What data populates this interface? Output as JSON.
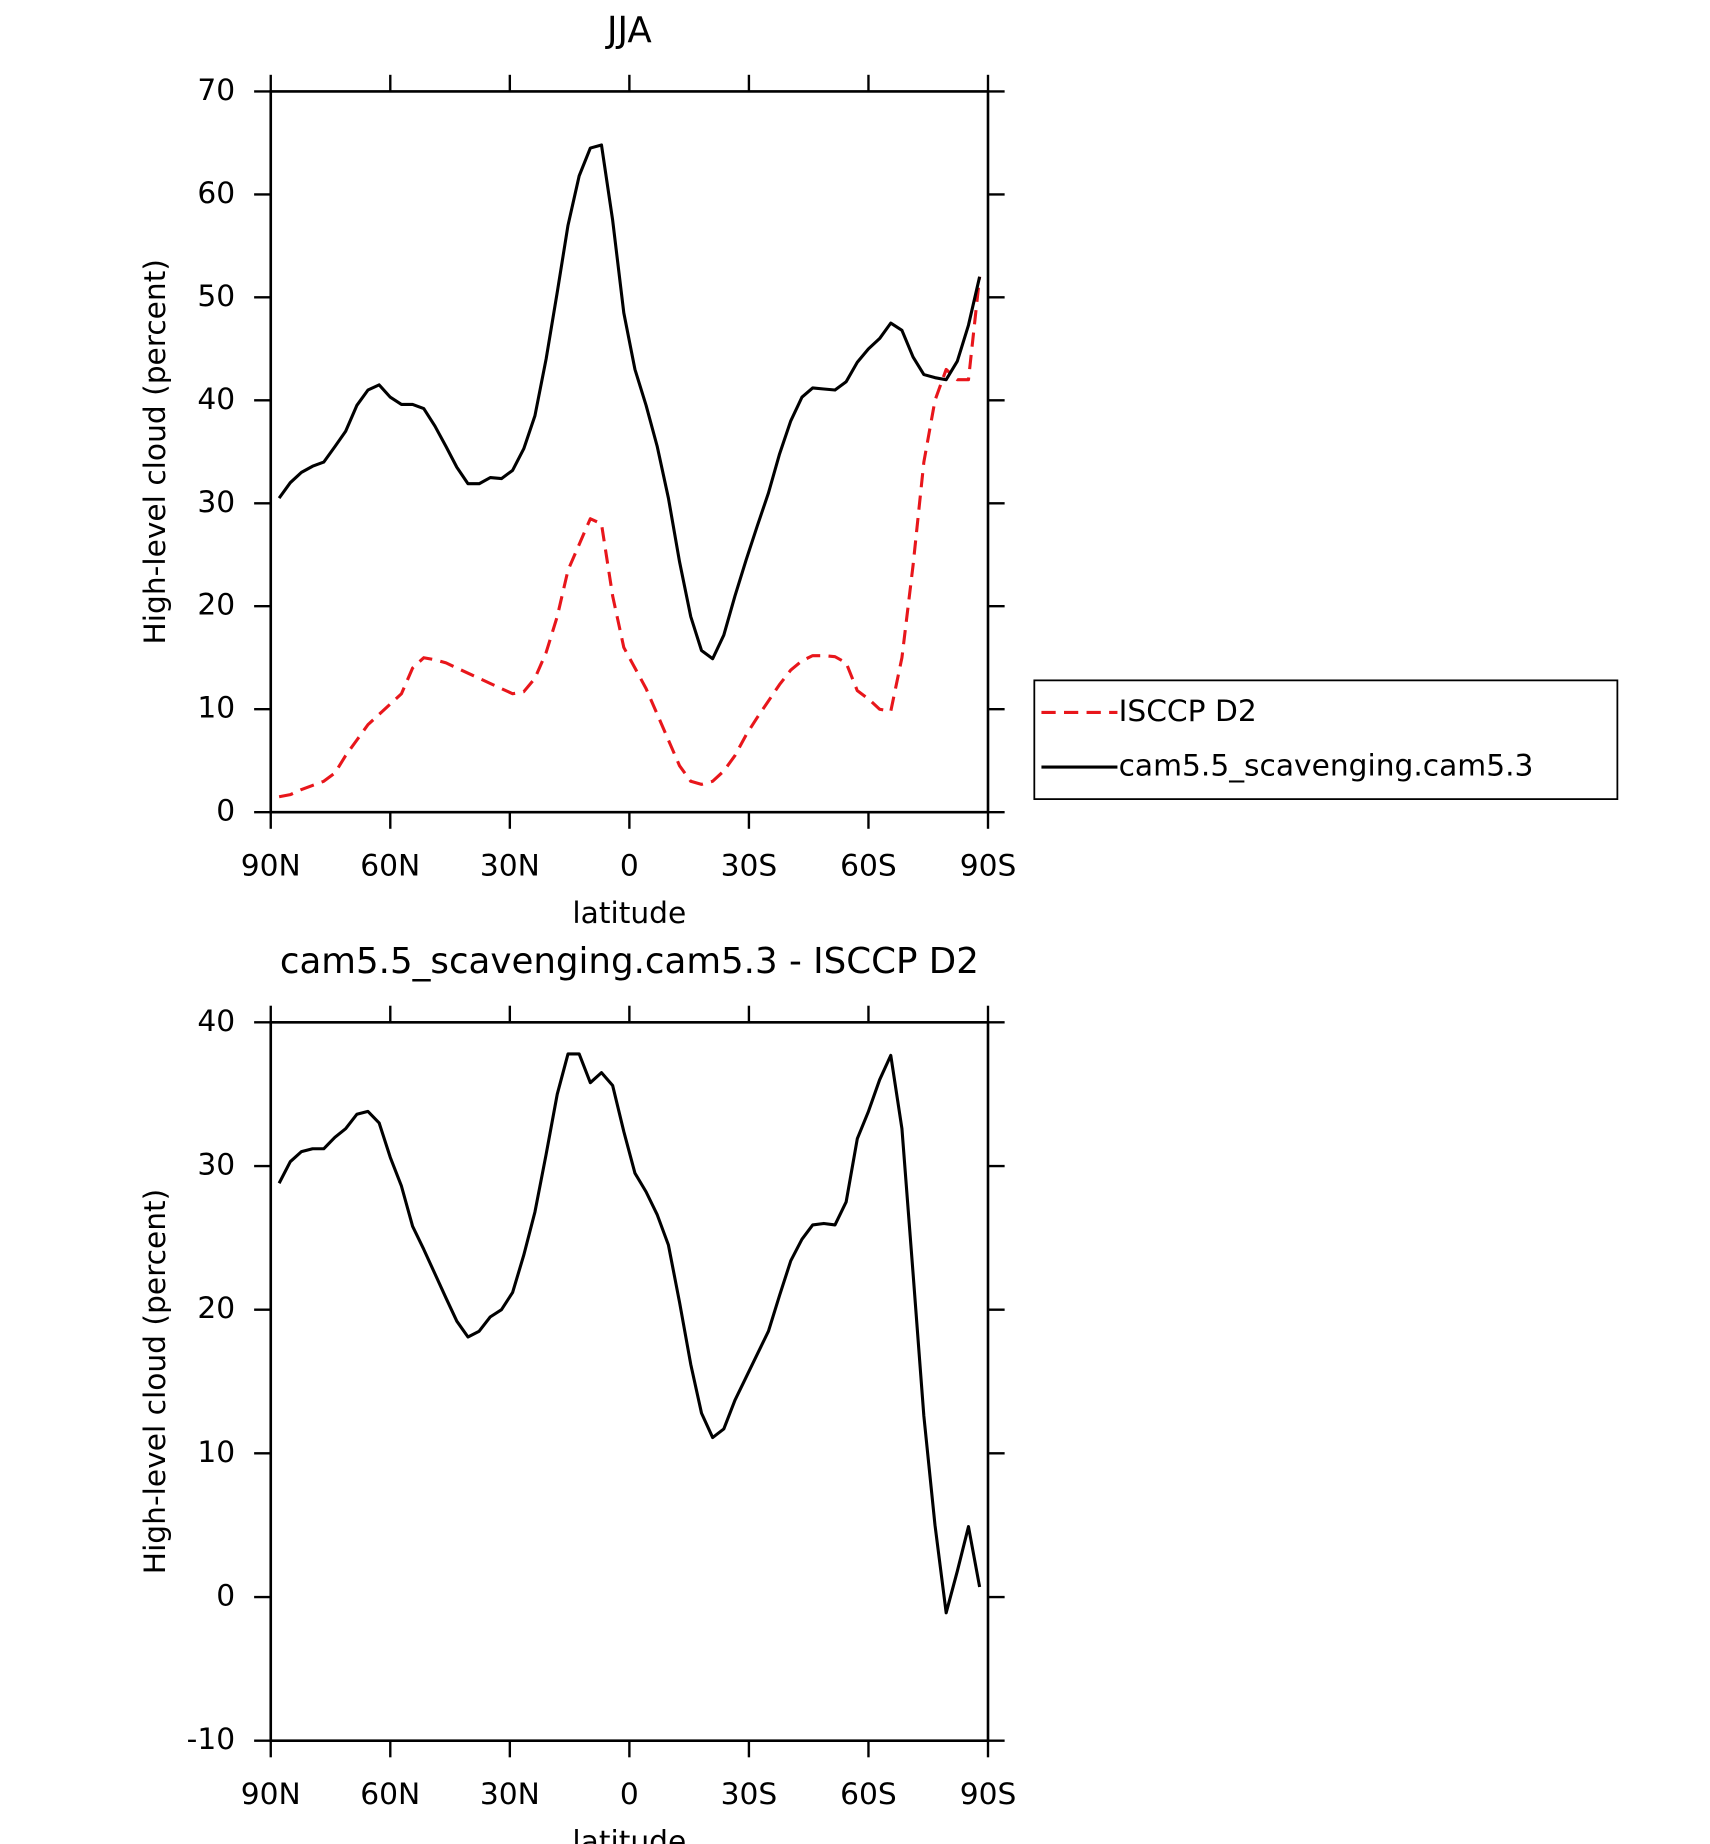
{
  "chart_data": [
    {
      "type": "line",
      "title": "JJA",
      "xlabel": "latitude",
      "ylabel": "High-level cloud (percent)",
      "xlim": [
        90,
        -90
      ],
      "ylim": [
        0,
        70
      ],
      "xticks": [
        {
          "value": 90,
          "label": "90N"
        },
        {
          "value": 60,
          "label": "60N"
        },
        {
          "value": 30,
          "label": "30N"
        },
        0,
        {
          "value": -30,
          "label": "30S"
        },
        {
          "value": -60,
          "label": "60S"
        },
        {
          "value": -90,
          "label": "90S"
        }
      ],
      "yticks": [
        0,
        10,
        20,
        30,
        40,
        50,
        60,
        70
      ],
      "legend": "right",
      "x": [
        87.9,
        85.1,
        82.3,
        79.5,
        76.7,
        73.9,
        71.2,
        68.4,
        65.6,
        62.8,
        60.0,
        57.2,
        54.4,
        51.6,
        48.8,
        46.0,
        43.3,
        40.5,
        37.7,
        34.9,
        32.1,
        29.3,
        26.5,
        23.7,
        20.9,
        18.1,
        15.4,
        12.6,
        9.8,
        7.0,
        4.2,
        1.4,
        -1.4,
        -4.2,
        -7.0,
        -9.8,
        -12.6,
        -15.4,
        -18.1,
        -20.9,
        -23.7,
        -26.5,
        -29.3,
        -32.1,
        -34.9,
        -37.7,
        -40.5,
        -43.3,
        -46.0,
        -48.8,
        -51.6,
        -54.4,
        -57.2,
        -60.0,
        -62.8,
        -65.6,
        -68.4,
        -71.2,
        -73.9,
        -76.7,
        -79.5,
        -82.3,
        -85.1,
        -87.9
      ],
      "series": [
        {
          "name": "ISCCP D2",
          "color": "#e8161b",
          "dashed": true,
          "values": [
            1.5,
            1.7,
            2.2,
            2.6,
            3,
            3.8,
            5.5,
            7,
            8.5,
            9.5,
            10.5,
            11.5,
            14,
            15,
            14.8,
            14.5,
            14,
            13.5,
            13,
            12.5,
            12,
            11.5,
            11.7,
            13,
            15.5,
            19,
            23.5,
            26,
            28.5,
            28,
            21,
            16,
            14,
            12,
            9.5,
            7,
            4.5,
            3,
            2.7,
            3,
            4,
            5.5,
            7.5,
            9.2,
            10.8,
            12.4,
            13.8,
            14.7,
            15.2,
            15.2,
            15.1,
            14.5,
            11.8,
            11,
            10,
            9.8,
            15,
            24,
            34,
            40,
            43,
            42,
            42,
            52
          ]
        },
        {
          "name": "cam5.5_scavenging.cam5.3",
          "color": "#000000",
          "dashed": false,
          "values": [
            30.5,
            32,
            33,
            33.6,
            34,
            35.5,
            37,
            39.5,
            41,
            41.5,
            40.3,
            39.6,
            39.6,
            39.2,
            37.5,
            35.5,
            33.5,
            31.9,
            31.9,
            32.5,
            32.4,
            33.2,
            35.3,
            38.5,
            44,
            50.5,
            57,
            61.8,
            64.5,
            64.8,
            57.5,
            48.5,
            43,
            39.5,
            35.5,
            30.5,
            24.3,
            19,
            15.7,
            14.9,
            17.2,
            21,
            24.5,
            27.8,
            31,
            34.8,
            38,
            40.3,
            41.2,
            41.1,
            41,
            41.8,
            43.7,
            45,
            46,
            47.5,
            46.8,
            44.2,
            42.5,
            42.2,
            42,
            43.8,
            47.3,
            52
          ]
        }
      ]
    },
    {
      "type": "line",
      "title": "cam5.5_scavenging.cam5.3 - ISCCP D2",
      "xlabel": "latitude",
      "ylabel": "High-level cloud (percent)",
      "xlim": [
        90,
        -90
      ],
      "ylim": [
        -10,
        40
      ],
      "xticks": [
        {
          "value": 90,
          "label": "90N"
        },
        {
          "value": 60,
          "label": "60N"
        },
        {
          "value": 30,
          "label": "30N"
        },
        0,
        {
          "value": -30,
          "label": "30S"
        },
        {
          "value": -60,
          "label": "60S"
        },
        {
          "value": -90,
          "label": "90S"
        }
      ],
      "yticks": [
        -10,
        0,
        10,
        20,
        30,
        40
      ],
      "x": [
        87.9,
        85.1,
        82.3,
        79.5,
        76.7,
        73.9,
        71.2,
        68.4,
        65.6,
        62.8,
        60.0,
        57.2,
        54.4,
        51.6,
        48.8,
        46.0,
        43.3,
        40.5,
        37.7,
        34.9,
        32.1,
        29.3,
        26.5,
        23.7,
        20.9,
        18.1,
        15.4,
        12.6,
        9.8,
        7.0,
        4.2,
        1.4,
        -1.4,
        -4.2,
        -7.0,
        -9.8,
        -12.6,
        -15.4,
        -18.1,
        -20.9,
        -23.7,
        -26.5,
        -29.3,
        -32.1,
        -34.9,
        -37.7,
        -40.5,
        -43.3,
        -46.0,
        -48.8,
        -51.6,
        -54.4,
        -57.2,
        -60.0,
        -62.8,
        -65.6,
        -68.4,
        -71.2,
        -73.9,
        -76.7,
        -79.5,
        -82.3,
        -85.1,
        -87.9
      ],
      "series": [
        {
          "color": "#000000",
          "dashed": false,
          "values": [
            28.8,
            30.3,
            31,
            31.2,
            31.2,
            32,
            32.6,
            33.6,
            33.8,
            33,
            30.6,
            28.6,
            25.8,
            24.2,
            22.5,
            20.8,
            19.2,
            18.1,
            18.5,
            19.5,
            20,
            21.2,
            23.8,
            26.8,
            30.8,
            35,
            37.8,
            37.8,
            35.8,
            36.5,
            35.6,
            32.4,
            29.5,
            28.2,
            26.6,
            24.5,
            20.5,
            16.2,
            12.8,
            11.1,
            11.7,
            13.7,
            15.3,
            16.9,
            18.5,
            21,
            23.4,
            24.9,
            25.9,
            26,
            25.9,
            27.5,
            31.9,
            33.8,
            36,
            37.7,
            32.6,
            22.5,
            12.6,
            5,
            -1.1,
            1.8,
            4.9,
            0.7
          ]
        }
      ]
    }
  ]
}
